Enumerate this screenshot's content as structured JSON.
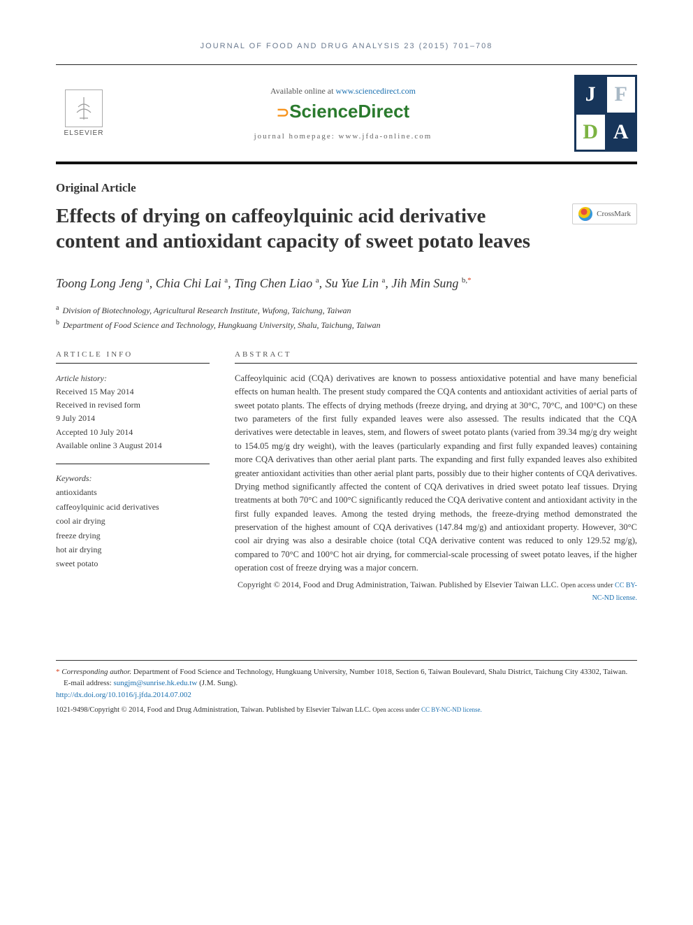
{
  "journal_ref": "JOURNAL OF FOOD AND DRUG ANALYSIS 23 (2015) 701–708",
  "header": {
    "available_prefix": "Available online at ",
    "available_link": "www.sciencedirect.com",
    "sd_logo_text": "ScienceDirect",
    "homepage_prefix": "journal homepage: ",
    "homepage_link": "www.jfda-online.com",
    "elsevier_label": "ELSEVIER",
    "crossmark_label": "CrossMark"
  },
  "jfda": {
    "j": "J",
    "f": "F",
    "d": "D",
    "a": "A"
  },
  "article_type": "Original Article",
  "title": "Effects of drying on caffeoylquinic acid derivative content and antioxidant capacity of sweet potato leaves",
  "authors_html": "Toong Long Jeng <sup>a</sup>, Chia Chi Lai <sup>a</sup>, Ting Chen Liao <sup>a</sup>, Su Yue Lin <sup>a</sup>, Jih Min Sung <sup>b,</sup><sup class='corr-star'>*</sup>",
  "affiliations": {
    "a": "Division of Biotechnology, Agricultural Research Institute, Wufong, Taichung, Taiwan",
    "b": "Department of Food Science and Technology, Hungkuang University, Shalu, Taichung, Taiwan"
  },
  "article_info": {
    "heading": "ARTICLE INFO",
    "history_label": "Article history:",
    "received": "Received 15 May 2014",
    "revised_label": "Received in revised form",
    "revised_date": "9 July 2014",
    "accepted": "Accepted 10 July 2014",
    "online": "Available online 3 August 2014",
    "keywords_label": "Keywords:",
    "keywords": [
      "antioxidants",
      "caffeoylquinic acid derivatives",
      "cool air drying",
      "freeze drying",
      "hot air drying",
      "sweet potato"
    ]
  },
  "abstract": {
    "heading": "ABSTRACT",
    "body": "Caffeoylquinic acid (CQA) derivatives are known to possess antioxidative potential and have many beneficial effects on human health. The present study compared the CQA contents and antioxidant activities of aerial parts of sweet potato plants. The effects of drying methods (freeze drying, and drying at 30°C, 70°C, and 100°C) on these two parameters of the first fully expanded leaves were also assessed. The results indicated that the CQA derivatives were detectable in leaves, stem, and flowers of sweet potato plants (varied from 39.34 mg/g dry weight to 154.05 mg/g dry weight), with the leaves (particularly expanding and first fully expanded leaves) containing more CQA derivatives than other aerial plant parts. The expanding and first fully expanded leaves also exhibited greater antioxidant activities than other aerial plant parts, possibly due to their higher contents of CQA derivatives. Drying method significantly affected the content of CQA derivatives in dried sweet potato leaf tissues. Drying treatments at both 70°C and 100°C significantly reduced the CQA derivative content and antioxidant activity in the first fully expanded leaves. Among the tested drying methods, the freeze-drying method demonstrated the preservation of the highest amount of CQA derivatives (147.84 mg/g) and antioxidant property. However, 30°C cool air drying was also a desirable choice (total CQA derivative content was reduced to only 129.52 mg/g), compared to 70°C and 100°C hot air drying, for commercial-scale processing of sweet potato leaves, if the higher operation cost of freeze drying was a major concern.",
    "copyright": "Copyright © 2014, Food and Drug Administration, Taiwan. Published by Elsevier Taiwan LLC.",
    "open_access": "Open access under ",
    "license_link": "CC BY-NC-ND license."
  },
  "footer": {
    "corresponding_label": "Corresponding author.",
    "corresponding_text": " Department of Food Science and Technology, Hungkuang University, Number 1018, Section 6, Taiwan Boulevard, Shalu District, Taichung City 43302, Taiwan.",
    "email_label": "E-mail address: ",
    "email": "sungjm@sunrise.hk.edu.tw",
    "email_suffix": " (J.M. Sung).",
    "doi": "http://dx.doi.org/10.1016/j.jfda.2014.07.002",
    "issn_line": "1021-9498/Copyright © 2014, Food and Drug Administration, Taiwan. Published by Elsevier Taiwan LLC. ",
    "oa_small": "Open access under ",
    "license_link": "CC BY-NC-ND license."
  },
  "colors": {
    "link": "#1a6faf",
    "accent": "#d9411e",
    "jfda_bg": "#17355a",
    "sd_green": "#2a7a2d",
    "sd_orange": "#f7941e"
  }
}
